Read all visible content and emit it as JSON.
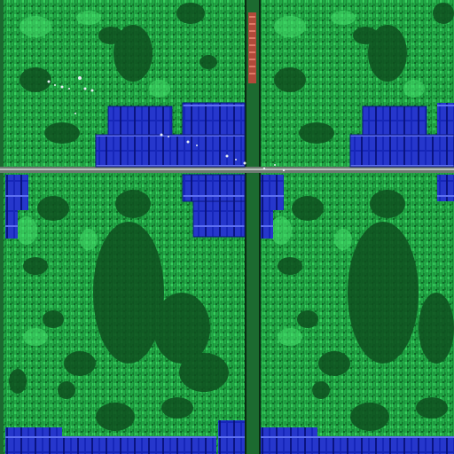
{
  "image": {
    "subject": "die-photo",
    "colors": {
      "logic_bright": "#34d15a",
      "logic_mid": "#1f9a3c",
      "logic_dark": "#0f4f1f",
      "logic_deep": "#083816",
      "sram_blue": "#1626b8",
      "sram_light": "#3e52e0",
      "sram_dark": "#0a1480",
      "bus_gray": "#8a8a8a",
      "bus_dark": "#2a2a2a",
      "pad_red": "#b04a3a",
      "defect_white": "#e8eef4"
    }
  }
}
